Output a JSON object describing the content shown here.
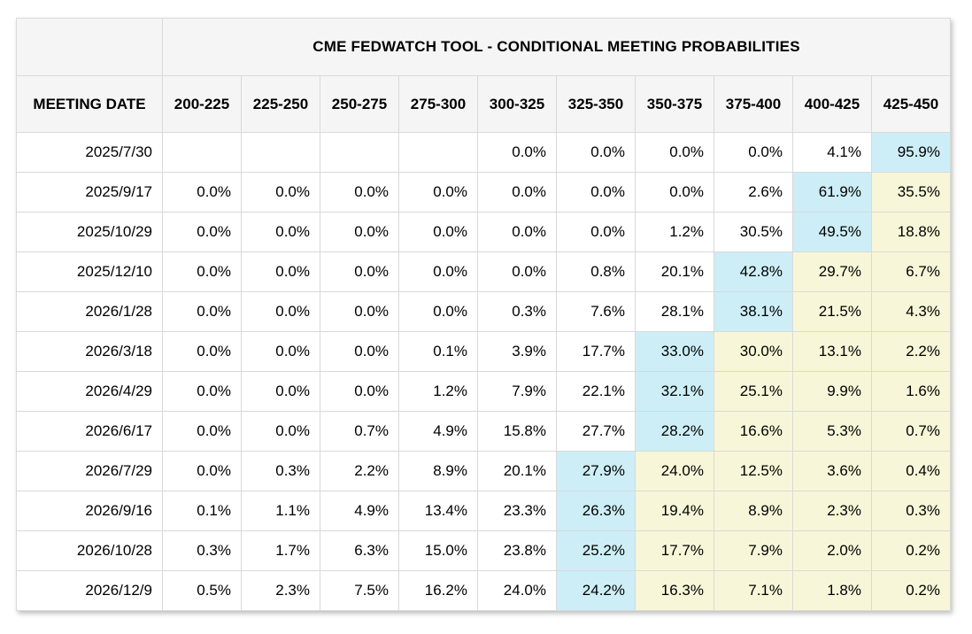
{
  "chart_data": {
    "type": "table",
    "title": "CME FEDWATCH TOOL - CONDITIONAL MEETING PROBABILITIES",
    "row_header": "MEETING DATE",
    "columns": [
      "200-225",
      "225-250",
      "250-275",
      "275-300",
      "300-325",
      "325-350",
      "350-375",
      "375-400",
      "400-425",
      "425-450"
    ],
    "rows": [
      {
        "date": "2025/7/30",
        "values": [
          "",
          "",
          "",
          "",
          "0.0%",
          "0.0%",
          "0.0%",
          "0.0%",
          "4.1%",
          "95.9%"
        ],
        "cyan": 9,
        "yellow": []
      },
      {
        "date": "2025/9/17",
        "values": [
          "0.0%",
          "0.0%",
          "0.0%",
          "0.0%",
          "0.0%",
          "0.0%",
          "0.0%",
          "2.6%",
          "61.9%",
          "35.5%"
        ],
        "cyan": 8,
        "yellow": [
          9
        ]
      },
      {
        "date": "2025/10/29",
        "values": [
          "0.0%",
          "0.0%",
          "0.0%",
          "0.0%",
          "0.0%",
          "0.0%",
          "1.2%",
          "30.5%",
          "49.5%",
          "18.8%"
        ],
        "cyan": 8,
        "yellow": [
          9
        ]
      },
      {
        "date": "2025/12/10",
        "values": [
          "0.0%",
          "0.0%",
          "0.0%",
          "0.0%",
          "0.0%",
          "0.8%",
          "20.1%",
          "42.8%",
          "29.7%",
          "6.7%"
        ],
        "cyan": 7,
        "yellow": [
          8,
          9
        ]
      },
      {
        "date": "2026/1/28",
        "values": [
          "0.0%",
          "0.0%",
          "0.0%",
          "0.0%",
          "0.3%",
          "7.6%",
          "28.1%",
          "38.1%",
          "21.5%",
          "4.3%"
        ],
        "cyan": 7,
        "yellow": [
          8,
          9
        ]
      },
      {
        "date": "2026/3/18",
        "values": [
          "0.0%",
          "0.0%",
          "0.0%",
          "0.1%",
          "3.9%",
          "17.7%",
          "33.0%",
          "30.0%",
          "13.1%",
          "2.2%"
        ],
        "cyan": 6,
        "yellow": [
          7,
          8,
          9
        ]
      },
      {
        "date": "2026/4/29",
        "values": [
          "0.0%",
          "0.0%",
          "0.0%",
          "1.2%",
          "7.9%",
          "22.1%",
          "32.1%",
          "25.1%",
          "9.9%",
          "1.6%"
        ],
        "cyan": 6,
        "yellow": [
          7,
          8,
          9
        ]
      },
      {
        "date": "2026/6/17",
        "values": [
          "0.0%",
          "0.0%",
          "0.7%",
          "4.9%",
          "15.8%",
          "27.7%",
          "28.2%",
          "16.6%",
          "5.3%",
          "0.7%"
        ],
        "cyan": 6,
        "yellow": [
          7,
          8,
          9
        ]
      },
      {
        "date": "2026/7/29",
        "values": [
          "0.0%",
          "0.3%",
          "2.2%",
          "8.9%",
          "20.1%",
          "27.9%",
          "24.0%",
          "12.5%",
          "3.6%",
          "0.4%"
        ],
        "cyan": 5,
        "yellow": [
          6,
          7,
          8,
          9
        ]
      },
      {
        "date": "2026/9/16",
        "values": [
          "0.1%",
          "1.1%",
          "4.9%",
          "13.4%",
          "23.3%",
          "26.3%",
          "19.4%",
          "8.9%",
          "2.3%",
          "0.3%"
        ],
        "cyan": 5,
        "yellow": [
          6,
          7,
          8,
          9
        ]
      },
      {
        "date": "2026/10/28",
        "values": [
          "0.3%",
          "1.7%",
          "6.3%",
          "15.0%",
          "23.8%",
          "25.2%",
          "17.7%",
          "7.9%",
          "2.0%",
          "0.2%"
        ],
        "cyan": 5,
        "yellow": [
          6,
          7,
          8,
          9
        ]
      },
      {
        "date": "2026/12/9",
        "values": [
          "0.5%",
          "2.3%",
          "7.5%",
          "16.2%",
          "24.0%",
          "24.2%",
          "16.3%",
          "7.1%",
          "1.8%",
          "0.2%"
        ],
        "cyan": 5,
        "yellow": [
          6,
          7,
          8,
          9
        ]
      }
    ]
  },
  "colors": {
    "max_highlight": "#cdeef6",
    "tail_highlight": "#f8f6d8",
    "header_bg": "#f5f5f5",
    "grid_line": "#d9d9d9"
  }
}
